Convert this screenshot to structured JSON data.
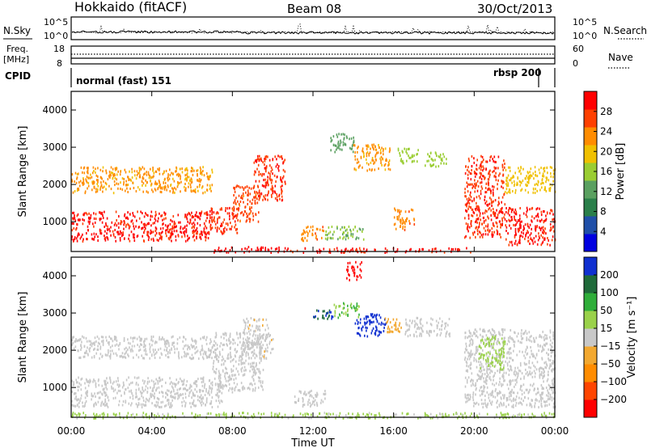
{
  "header": {
    "station": "Hokkaido (fitACF)",
    "beam": "Beam 08",
    "date": "30/Oct/2013"
  },
  "top_panels": {
    "nsky_label": "N.Sky",
    "nsearch_label": "N.Search",
    "freq_label": "Freq.",
    "freq_unit": "[MHz]",
    "nave_label": "Nave",
    "cpid_label": "CPID",
    "nsky_ticks": [
      "10^5",
      "10^0"
    ],
    "nsearch_ticks": [
      "10^5",
      "10^0"
    ],
    "freq_ticks": [
      "18",
      "8"
    ],
    "nave_ticks": [
      "60",
      "0"
    ],
    "cpid_segments": [
      {
        "label": "normal (fast) 151",
        "start": 0,
        "end": 20.0
      },
      {
        "label": "rbsp 200",
        "start": 20.0,
        "end": 22.6
      }
    ],
    "cpid_end": 24
  },
  "colors": {
    "power_scale": [
      "#0000e0",
      "#1f4fa8",
      "#2a7f4a",
      "#5aa060",
      "#9acd32",
      "#f0c000",
      "#ff8c00",
      "#ff4000",
      "#ff0000"
    ],
    "velocity_scale": [
      "#ff0000",
      "#ff4500",
      "#ff8c00",
      "#f2a830",
      "#c8c8c8",
      "#9ad14a",
      "#2fae3a",
      "#1f6a3a",
      "#1030d0"
    ]
  },
  "chart_data": [
    {
      "type": "heatmap",
      "name": "power",
      "ylabel": "Slant Range [km]",
      "yticks": [
        "1000",
        "2000",
        "3000",
        "4000"
      ],
      "ylim": [
        200,
        4500
      ],
      "xlim": [
        0,
        24
      ],
      "colorbar": {
        "label": "Power [dB]",
        "ticks": [
          "4",
          "8",
          "12",
          "16",
          "20",
          "24",
          "28"
        ],
        "range": [
          0,
          32
        ]
      },
      "regions": [
        {
          "t0": 0.0,
          "t1": 7.0,
          "r0": 500,
          "r1": 1300,
          "value": 29
        },
        {
          "t0": 0.0,
          "t1": 7.0,
          "r0": 1800,
          "r1": 2500,
          "value": 22
        },
        {
          "t0": 6.8,
          "t1": 8.3,
          "r0": 700,
          "r1": 1400,
          "value": 28
        },
        {
          "t0": 8.0,
          "t1": 9.3,
          "r0": 1000,
          "r1": 2000,
          "value": 26
        },
        {
          "t0": 9.0,
          "t1": 10.6,
          "r0": 1600,
          "r1": 2800,
          "value": 28
        },
        {
          "t0": 7.0,
          "t1": 10.5,
          "r0": 200,
          "r1": 350,
          "value": 30
        },
        {
          "t0": 10.5,
          "t1": 19.8,
          "r0": 200,
          "r1": 320,
          "value": 29
        },
        {
          "t0": 11.4,
          "t1": 12.5,
          "r0": 500,
          "r1": 900,
          "value": 24
        },
        {
          "t0": 12.5,
          "t1": 14.5,
          "r0": 550,
          "r1": 900,
          "value": 14
        },
        {
          "t0": 12.8,
          "t1": 14.0,
          "r0": 2900,
          "r1": 3400,
          "value": 12
        },
        {
          "t0": 14.0,
          "t1": 15.8,
          "r0": 2400,
          "r1": 3100,
          "value": 22
        },
        {
          "t0": 16.0,
          "t1": 17.0,
          "r0": 800,
          "r1": 1400,
          "value": 24
        },
        {
          "t0": 16.2,
          "t1": 17.2,
          "r0": 2600,
          "r1": 3000,
          "value": 16
        },
        {
          "t0": 17.5,
          "t1": 18.6,
          "r0": 2500,
          "r1": 2900,
          "value": 16
        },
        {
          "t0": 19.5,
          "t1": 21.5,
          "r0": 600,
          "r1": 2800,
          "value": 28
        },
        {
          "t0": 21.5,
          "t1": 24.0,
          "r0": 400,
          "r1": 1400,
          "value": 29
        },
        {
          "t0": 21.5,
          "t1": 24.0,
          "r0": 1800,
          "r1": 2500,
          "value": 20
        }
      ]
    },
    {
      "type": "heatmap",
      "name": "velocity",
      "ylabel": "Slant Range [km]",
      "yticks": [
        "1000",
        "2000",
        "3000",
        "4000"
      ],
      "ylim": [
        200,
        4500
      ],
      "xlim": [
        0,
        24
      ],
      "xlabel": "Time UT",
      "xticks": [
        "00:00",
        "04:00",
        "08:00",
        "12:00",
        "16:00",
        "20:00",
        "00:00"
      ],
      "colorbar": {
        "label": "Velocity [m s⁻¹]",
        "ticks": [
          "200",
          "100",
          "50",
          "15",
          "−15",
          "−50",
          "−100",
          "−200"
        ],
        "range": [
          -250,
          250
        ]
      },
      "regions": [
        {
          "t0": 0.0,
          "t1": 7.5,
          "r0": 500,
          "r1": 1300,
          "value": 0
        },
        {
          "t0": 0.0,
          "t1": 7.0,
          "r0": 1800,
          "r1": 2400,
          "value": 5
        },
        {
          "t0": 7.0,
          "t1": 9.5,
          "r0": 900,
          "r1": 2500,
          "value": 0
        },
        {
          "t0": 8.5,
          "t1": 10.0,
          "r0": 1800,
          "r1": 2900,
          "value": -10
        },
        {
          "t0": 0.0,
          "t1": 24.0,
          "r0": 200,
          "r1": 350,
          "value": 40
        },
        {
          "t0": 11.0,
          "t1": 12.6,
          "r0": 500,
          "r1": 950,
          "value": 0
        },
        {
          "t0": 12.0,
          "t1": 13.0,
          "r0": 2800,
          "r1": 3100,
          "value": 200
        },
        {
          "t0": 13.0,
          "t1": 14.3,
          "r0": 2900,
          "r1": 3300,
          "value": 80
        },
        {
          "t0": 14.0,
          "t1": 15.6,
          "r0": 2400,
          "r1": 3000,
          "value": 220
        },
        {
          "t0": 15.5,
          "t1": 16.4,
          "r0": 2500,
          "r1": 2900,
          "value": -60
        },
        {
          "t0": 16.5,
          "t1": 18.8,
          "r0": 2400,
          "r1": 2900,
          "value": -5
        },
        {
          "t0": 13.6,
          "t1": 14.4,
          "r0": 3900,
          "r1": 4400,
          "value": -220
        },
        {
          "t0": 19.5,
          "t1": 24.0,
          "r0": 500,
          "r1": 2600,
          "value": 0
        },
        {
          "t0": 20.2,
          "t1": 21.5,
          "r0": 1500,
          "r1": 2400,
          "value": 60
        }
      ]
    }
  ]
}
